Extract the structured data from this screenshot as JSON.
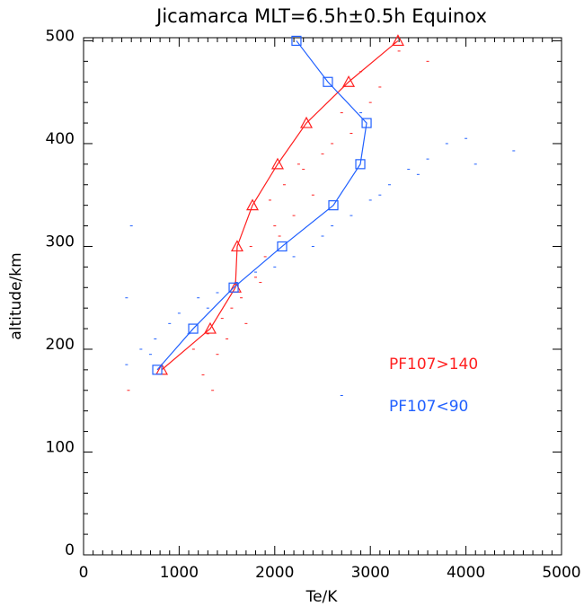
{
  "chart_data": {
    "type": "line",
    "title": "Jicamarca   MLT=6.5h±0.5h  Equinox",
    "x_label": "Te/K",
    "y_label": "altitude/km",
    "xlim": [
      0,
      5000
    ],
    "xticks": [
      0,
      1000,
      2000,
      3000,
      4000,
      5000
    ],
    "ylim": [
      0,
      503
    ],
    "yticks": [
      0,
      100,
      200,
      300,
      400,
      500
    ],
    "legend": "right",
    "series": [
      {
        "name": "PF107>140",
        "color": "#ff2020",
        "marker": "triangle",
        "x": [
          818,
          1325,
          1588,
          1607,
          1767,
          2030,
          2331,
          2773,
          3289
        ],
        "values": [
          180,
          220,
          260,
          300,
          340,
          380,
          420,
          460,
          500
        ],
        "scatter_x": [
          470,
          1250,
          1400,
          1500,
          1700,
          1650,
          1800,
          1900,
          2050,
          2200,
          1550,
          1750,
          2400,
          2100,
          2300,
          2500,
          2600,
          2800,
          2700,
          3000,
          3100,
          2900,
          1450,
          1300,
          2000,
          1850,
          1950,
          2250,
          3300,
          3600,
          1350,
          1150
        ],
        "scatter_y": [
          160,
          175,
          195,
          210,
          225,
          250,
          270,
          290,
          310,
          330,
          240,
          300,
          350,
          360,
          375,
          390,
          400,
          410,
          430,
          440,
          455,
          470,
          230,
          215,
          320,
          265,
          345,
          380,
          490,
          480,
          160,
          200
        ]
      },
      {
        "name": "PF107<90",
        "color": "#2060ff",
        "marker": "square",
        "x": [
          771,
          1147,
          1570,
          2077,
          2613,
          2895,
          2961,
          2556,
          2227
        ],
        "values": [
          180,
          220,
          260,
          300,
          340,
          380,
          420,
          460,
          500
        ],
        "scatter_x": [
          450,
          600,
          750,
          900,
          1000,
          1200,
          1400,
          1600,
          1800,
          2000,
          2200,
          2400,
          2600,
          2800,
          3000,
          3200,
          3400,
          3600,
          3800,
          4000,
          4500,
          450,
          500,
          700,
          1100,
          1300,
          2500,
          3100,
          3500,
          4100,
          2900,
          2700
        ],
        "scatter_y": [
          185,
          200,
          210,
          225,
          235,
          250,
          255,
          265,
          275,
          280,
          290,
          300,
          320,
          330,
          345,
          360,
          375,
          385,
          400,
          405,
          393,
          250,
          320,
          195,
          215,
          240,
          310,
          350,
          370,
          380,
          430,
          155
        ]
      }
    ]
  }
}
